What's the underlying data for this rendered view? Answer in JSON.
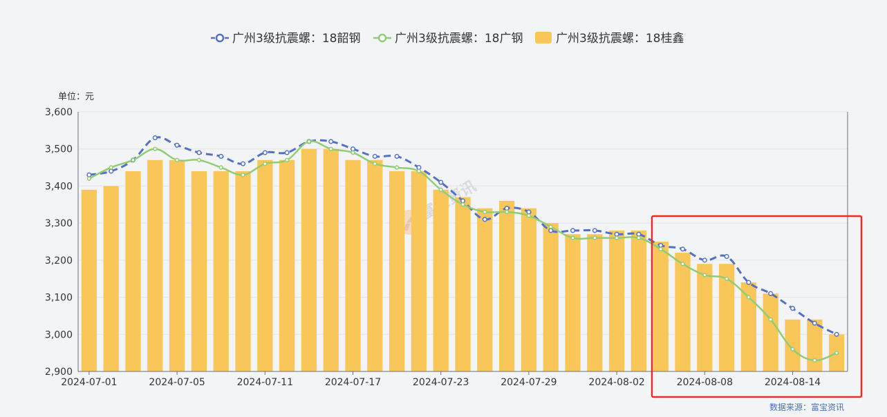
{
  "chart_data": {
    "type": "bar",
    "unit_label": "单位：元",
    "source": "数据来源：富宝资讯",
    "watermark": "富宝资讯",
    "ylim": [
      2900,
      3600
    ],
    "yticks": [
      "3,600",
      "3,500",
      "3,400",
      "3,300",
      "3,200",
      "3,100",
      "3,000",
      "2,900"
    ],
    "ytick_values": [
      3600,
      3500,
      3400,
      3300,
      3200,
      3100,
      3000,
      2900
    ],
    "x": [
      "2024-07-01",
      "2024-07-02",
      "2024-07-03",
      "2024-07-04",
      "2024-07-05",
      "2024-07-08",
      "2024-07-09",
      "2024-07-10",
      "2024-07-11",
      "2024-07-12",
      "2024-07-15",
      "2024-07-16",
      "2024-07-17",
      "2024-07-18",
      "2024-07-19",
      "2024-07-22",
      "2024-07-23",
      "2024-07-24",
      "2024-07-25",
      "2024-07-26",
      "2024-07-29",
      "2024-07-30",
      "2024-07-31",
      "2024-08-01",
      "2024-08-02",
      "2024-08-05",
      "2024-08-06",
      "2024-08-07",
      "2024-08-08",
      "2024-08-09",
      "2024-08-12",
      "2024-08-13",
      "2024-08-14",
      "2024-08-15",
      "2024-08-16"
    ],
    "xtick_labels": [
      "2024-07-01",
      "2024-07-05",
      "2024-07-11",
      "2024-07-17",
      "2024-07-23",
      "2024-07-29",
      "2024-08-02",
      "2024-08-08",
      "2024-08-14"
    ],
    "xtick_indices": [
      0,
      4,
      8,
      12,
      16,
      20,
      24,
      28,
      32
    ],
    "grid": true,
    "legend_position": "top-center",
    "highlight": {
      "from_index": 26,
      "to_index": 34,
      "color": "#ee2a24"
    },
    "series": [
      {
        "name": "广州3级抗震螺：18韶钢",
        "kind": "line",
        "style": "dashed",
        "color": "#5470c6",
        "values": [
          3430,
          3440,
          3470,
          3530,
          3510,
          3490,
          3480,
          3460,
          3490,
          3490,
          3520,
          3520,
          3500,
          3480,
          3480,
          3450,
          3410,
          3360,
          3310,
          3340,
          3330,
          3280,
          3280,
          3280,
          3270,
          3270,
          3240,
          3230,
          3200,
          3210,
          3140,
          3110,
          3070,
          3030,
          3000
        ]
      },
      {
        "name": "广州3级抗震螺：18广钢",
        "kind": "line",
        "style": "solid",
        "color": "#91cc75",
        "values": [
          3420,
          3450,
          3470,
          3500,
          3470,
          3470,
          3450,
          3430,
          3460,
          3470,
          3520,
          3500,
          3490,
          3460,
          3450,
          3440,
          3390,
          3350,
          3330,
          3330,
          3320,
          3290,
          3260,
          3260,
          3260,
          3260,
          3230,
          3190,
          3160,
          3150,
          3100,
          3040,
          2960,
          2930,
          2950
        ]
      },
      {
        "name": "广州3级抗震螺：18桂鑫",
        "kind": "bar",
        "color": "#f9c659",
        "values": [
          3390,
          3400,
          3440,
          3470,
          3470,
          3440,
          3440,
          3440,
          3470,
          3470,
          3500,
          3500,
          3470,
          3470,
          3440,
          3440,
          3390,
          3370,
          3340,
          3360,
          3340,
          3300,
          3270,
          3270,
          3280,
          3280,
          3250,
          3220,
          3190,
          3190,
          3140,
          3110,
          3040,
          3040,
          3000
        ]
      }
    ]
  }
}
